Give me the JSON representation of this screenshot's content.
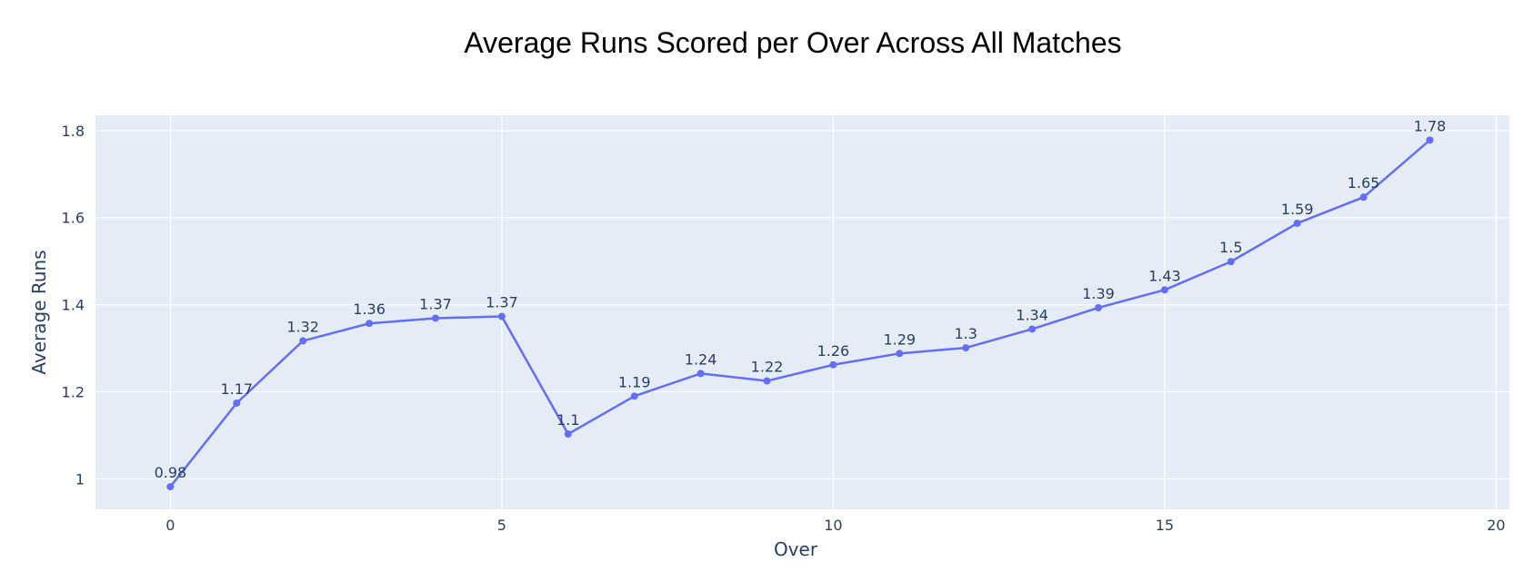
{
  "chart_data": {
    "type": "line",
    "title": "Average Runs Scored per Over Across All Matches",
    "xlabel": "Over",
    "ylabel": "Average Runs",
    "x": [
      0,
      1,
      2,
      3,
      4,
      5,
      6,
      7,
      8,
      9,
      10,
      11,
      12,
      13,
      14,
      15,
      16,
      17,
      18,
      19
    ],
    "values": [
      0.982,
      1.174,
      1.317,
      1.357,
      1.369,
      1.373,
      1.103,
      1.19,
      1.242,
      1.225,
      1.262,
      1.288,
      1.301,
      1.344,
      1.393,
      1.434,
      1.499,
      1.587,
      1.647,
      1.778
    ],
    "labels": [
      "0.98",
      "1.17",
      "1.32",
      "1.36",
      "1.37",
      "1.37",
      "1.1",
      "1.19",
      "1.24",
      "1.22",
      "1.26",
      "1.29",
      "1.3",
      "1.34",
      "1.39",
      "1.43",
      "1.5",
      "1.59",
      "1.65",
      "1.78"
    ],
    "xlim": [
      -1.13,
      20.2
    ],
    "ylim": [
      0.93,
      1.835
    ],
    "x_ticks": [
      0,
      5,
      10,
      15,
      20
    ],
    "x_tick_labels": [
      "0",
      "5",
      "10",
      "15",
      "20"
    ],
    "y_ticks": [
      1,
      1.2,
      1.4,
      1.6,
      1.8
    ],
    "y_tick_labels": [
      "1",
      "1.2",
      "1.4",
      "1.6",
      "1.8"
    ],
    "grid": true,
    "legend": "none",
    "colors": {
      "line": "#636efa",
      "plot_background": "#e5ecf6",
      "grid": "#ffffff",
      "text": "#2a3f5f"
    }
  }
}
